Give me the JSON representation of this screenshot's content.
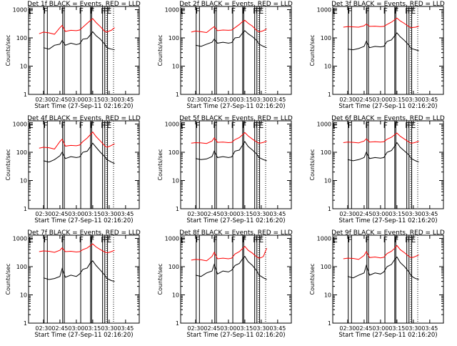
{
  "shared": {
    "xlabel": "Start Time (27-Sep-11 02:16:20)",
    "ylabel": "Counts/sec",
    "x_ticks": [
      "02:30",
      "02:45",
      "03:00",
      "03:15",
      "03:30",
      "03:45"
    ],
    "x_tick_minutes": [
      30,
      45,
      60,
      75,
      90,
      105
    ],
    "x_range_minutes": [
      16.33,
      117.5
    ],
    "y_ticks": [
      "1",
      "10",
      "100",
      "1000"
    ],
    "y_tick_values": [
      1,
      10,
      100,
      1000
    ],
    "ylim": [
      1,
      1300
    ],
    "scale": "log",
    "series_colors": {
      "events": "#000000",
      "lld": "#ff0000"
    },
    "attenuator_marker_minutes": [
      30.5,
      33.5,
      47.5,
      49.0,
      64.0,
      73.0,
      74.0,
      84.0,
      86.0,
      88.5
    ],
    "dotted_marker_minutes": [
      87.5,
      94.0
    ],
    "state_labels": [
      "E",
      "F",
      "F",
      "F",
      "F",
      "F",
      "F",
      "E"
    ],
    "state_label_minutes": [
      18.5,
      32.0,
      48.0,
      64.5,
      74.5,
      84.5,
      86.8,
      90.0
    ]
  },
  "chart_data": [
    {
      "type": "line",
      "title": "Det 1f BLACK = Events, RED = LLD",
      "scale": "log",
      "x_minutes": [
        26,
        30,
        35,
        40,
        45,
        47,
        50,
        55,
        60,
        63,
        66,
        70,
        73,
        75,
        78,
        82,
        86,
        88,
        90,
        92,
        95
      ],
      "series": [
        {
          "name": "Events",
          "color": "#000000",
          "values": [
            null,
            45,
            40,
            55,
            60,
            80,
            55,
            65,
            58,
            62,
            90,
            95,
            130,
            165,
            120,
            90,
            60,
            45,
            42,
            40,
            38
          ]
        },
        {
          "name": "LLD",
          "color": "#ff0000",
          "values": [
            140,
            160,
            150,
            135,
            230,
            275,
            170,
            185,
            180,
            190,
            240,
            330,
            420,
            480,
            350,
            250,
            170,
            160,
            175,
            185,
            230
          ]
        }
      ]
    },
    {
      "type": "line",
      "title": "Det 2f BLACK = Events, RED = LLD",
      "scale": "log",
      "x_minutes": [
        26,
        30,
        35,
        40,
        45,
        47,
        50,
        55,
        60,
        63,
        66,
        70,
        73,
        75,
        78,
        82,
        86,
        88,
        90,
        92,
        95
      ],
      "series": [
        {
          "name": "Events",
          "color": "#000000",
          "values": [
            null,
            55,
            50,
            60,
            70,
            90,
            65,
            70,
            65,
            68,
            100,
            105,
            150,
            180,
            140,
            110,
            80,
            60,
            55,
            50,
            45
          ]
        },
        {
          "name": "LLD",
          "color": "#ff0000",
          "values": [
            160,
            175,
            165,
            155,
            220,
            250,
            180,
            190,
            185,
            190,
            230,
            300,
            380,
            420,
            330,
            260,
            180,
            165,
            170,
            180,
            210
          ]
        }
      ]
    },
    {
      "type": "line",
      "title": "Det 3f BLACK = Events, RED = LLD",
      "scale": "log",
      "x_minutes": [
        26,
        30,
        35,
        40,
        45,
        47,
        50,
        55,
        60,
        63,
        66,
        70,
        73,
        75,
        78,
        82,
        86,
        88,
        90,
        92,
        95
      ],
      "series": [
        {
          "name": "Events",
          "color": "#000000",
          "values": [
            null,
            40,
            38,
            42,
            50,
            75,
            45,
            50,
            48,
            50,
            75,
            85,
            120,
            150,
            110,
            80,
            55,
            42,
            40,
            38,
            35
          ]
        },
        {
          "name": "LLD",
          "color": "#ff0000",
          "values": [
            240,
            250,
            245,
            240,
            270,
            310,
            255,
            260,
            250,
            255,
            300,
            360,
            440,
            500,
            400,
            320,
            250,
            230,
            235,
            240,
            260
          ]
        }
      ]
    },
    {
      "type": "line",
      "title": "Det 4f BLACK = Events, RED = LLD",
      "scale": "log",
      "x_minutes": [
        26,
        30,
        35,
        40,
        45,
        47,
        50,
        55,
        60,
        63,
        66,
        70,
        73,
        75,
        78,
        82,
        86,
        88,
        90,
        92,
        95
      ],
      "series": [
        {
          "name": "Events",
          "color": "#000000",
          "values": [
            null,
            50,
            45,
            55,
            75,
            100,
            60,
            70,
            65,
            68,
            100,
            110,
            160,
            210,
            150,
            100,
            70,
            55,
            50,
            45,
            40
          ]
        },
        {
          "name": "LLD",
          "color": "#ff0000",
          "values": [
            140,
            150,
            145,
            130,
            240,
            290,
            165,
            175,
            170,
            180,
            240,
            320,
            430,
            520,
            360,
            250,
            170,
            150,
            160,
            175,
            200
          ]
        }
      ]
    },
    {
      "type": "line",
      "title": "Det 5f BLACK = Events, RED = LLD",
      "scale": "log",
      "x_minutes": [
        26,
        30,
        35,
        40,
        45,
        47,
        50,
        55,
        60,
        63,
        66,
        70,
        73,
        75,
        78,
        82,
        86,
        88,
        90,
        92,
        95
      ],
      "series": [
        {
          "name": "Events",
          "color": "#000000",
          "values": [
            null,
            60,
            55,
            58,
            70,
            110,
            65,
            70,
            65,
            68,
            110,
            120,
            180,
            240,
            160,
            120,
            85,
            65,
            60,
            55,
            50
          ]
        },
        {
          "name": "LLD",
          "color": "#ff0000",
          "values": [
            210,
            220,
            215,
            205,
            250,
            320,
            225,
            230,
            220,
            225,
            280,
            330,
            420,
            500,
            380,
            290,
            230,
            210,
            215,
            225,
            250
          ]
        }
      ]
    },
    {
      "type": "line",
      "title": "Det 6f BLACK = Events, RED = LLD",
      "scale": "log",
      "x_minutes": [
        26,
        30,
        35,
        40,
        45,
        47,
        50,
        55,
        60,
        63,
        66,
        70,
        73,
        75,
        78,
        82,
        86,
        88,
        90,
        92,
        95
      ],
      "series": [
        {
          "name": "Events",
          "color": "#000000",
          "values": [
            null,
            55,
            50,
            55,
            65,
            100,
            60,
            65,
            62,
            65,
            100,
            115,
            165,
            220,
            150,
            110,
            80,
            60,
            55,
            50,
            45
          ]
        },
        {
          "name": "LLD",
          "color": "#ff0000",
          "values": [
            220,
            230,
            225,
            215,
            250,
            300,
            230,
            235,
            230,
            235,
            290,
            340,
            420,
            480,
            370,
            290,
            230,
            210,
            215,
            225,
            245
          ]
        }
      ]
    },
    {
      "type": "line",
      "title": "Det 7f BLACK = Events, RED = LLD",
      "scale": "log",
      "x_minutes": [
        26,
        30,
        35,
        40,
        45,
        47,
        50,
        55,
        60,
        63,
        66,
        70,
        73,
        75,
        78,
        82,
        86,
        88,
        90,
        92,
        95
      ],
      "series": [
        {
          "name": "Events",
          "color": "#000000",
          "values": [
            null,
            40,
            35,
            38,
            45,
            85,
            42,
            50,
            45,
            55,
            80,
            90,
            140,
            160,
            110,
            75,
            50,
            38,
            35,
            32,
            30
          ]
        },
        {
          "name": "LLD",
          "color": "#ff0000",
          "values": [
            340,
            360,
            350,
            320,
            380,
            460,
            340,
            350,
            330,
            340,
            400,
            460,
            560,
            640,
            500,
            400,
            330,
            310,
            320,
            340,
            380
          ]
        }
      ]
    },
    {
      "type": "line",
      "title": "Det 8f BLACK = Events, RED = LLD",
      "scale": "log",
      "x_minutes": [
        26,
        30,
        35,
        40,
        45,
        47,
        50,
        55,
        60,
        63,
        66,
        70,
        73,
        75,
        78,
        82,
        86,
        88,
        90,
        92,
        95
      ],
      "series": [
        {
          "name": "Events",
          "color": "#000000",
          "values": [
            null,
            50,
            45,
            60,
            70,
            120,
            55,
            70,
            65,
            75,
            110,
            130,
            190,
            230,
            150,
            110,
            70,
            50,
            45,
            40,
            35
          ]
        },
        {
          "name": "LLD",
          "color": "#ff0000",
          "values": [
            170,
            180,
            175,
            160,
            230,
            320,
            190,
            200,
            190,
            200,
            280,
            340,
            440,
            520,
            380,
            300,
            220,
            200,
            210,
            230,
            450
          ]
        }
      ]
    },
    {
      "type": "line",
      "title": "Det 9f BLACK = Events, RED = LLD",
      "scale": "log",
      "x_minutes": [
        26,
        30,
        35,
        40,
        45,
        47,
        50,
        55,
        60,
        63,
        66,
        70,
        73,
        75,
        78,
        82,
        86,
        88,
        90,
        92,
        95
      ],
      "series": [
        {
          "name": "Events",
          "color": "#000000",
          "values": [
            null,
            45,
            40,
            50,
            60,
            110,
            50,
            60,
            55,
            65,
            100,
            120,
            180,
            220,
            140,
            100,
            65,
            48,
            42,
            38,
            35
          ]
        },
        {
          "name": "LLD",
          "color": "#ff0000",
          "values": [
            190,
            200,
            195,
            180,
            250,
            340,
            210,
            220,
            205,
            215,
            290,
            350,
            450,
            560,
            400,
            310,
            230,
            210,
            215,
            230,
            260
          ]
        }
      ]
    }
  ]
}
